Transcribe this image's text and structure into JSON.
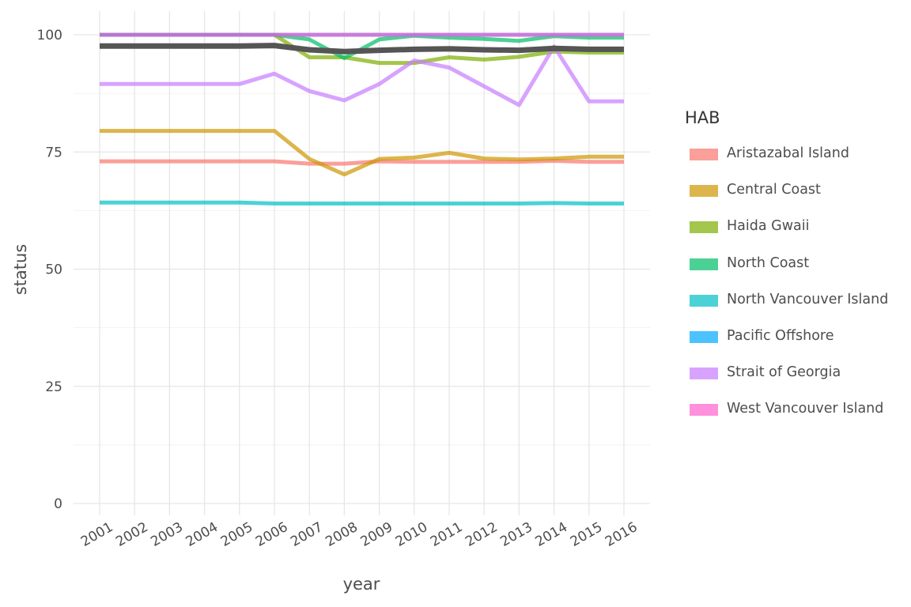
{
  "chart_data": {
    "type": "line",
    "xlabel": "year",
    "ylabel": "status",
    "ylim": [
      0,
      100
    ],
    "yticks": [
      0,
      25,
      50,
      75,
      100
    ],
    "x": [
      2001,
      2002,
      2003,
      2004,
      2005,
      2006,
      2007,
      2008,
      2009,
      2010,
      2011,
      2012,
      2013,
      2014,
      2015,
      2016
    ],
    "x_tick_labels": [
      "2001",
      "2002",
      "2003",
      "2004",
      "2005",
      "2006",
      "2007",
      "2008",
      "2009",
      "2010",
      "2011",
      "2012",
      "2013",
      "2014",
      "2015",
      "2016"
    ],
    "grid": true,
    "legend_title": "HAB",
    "legend_position": "right",
    "series": [
      {
        "name": "Aristazabal Island",
        "color": "#F8766D",
        "values": [
          73.0,
          73.0,
          73.0,
          73.0,
          73.0,
          73.0,
          72.5,
          72.5,
          73.0,
          72.9,
          72.9,
          72.9,
          72.9,
          73.1,
          72.9,
          72.9
        ]
      },
      {
        "name": "Central Coast",
        "color": "#CD9600",
        "values": [
          79.5,
          79.5,
          79.5,
          79.5,
          79.5,
          79.5,
          73.5,
          70.2,
          73.5,
          73.8,
          74.8,
          73.6,
          73.4,
          73.6,
          74.0,
          74.0
        ]
      },
      {
        "name": "Haida Gwaii",
        "color": "#7CAE00",
        "values": [
          100,
          100,
          100,
          100,
          100,
          100,
          95.2,
          95.2,
          94.0,
          94.0,
          95.2,
          94.7,
          95.3,
          96.4,
          96.2,
          96.2
        ]
      },
      {
        "name": "North Coast",
        "color": "#00BE67",
        "values": [
          100,
          100,
          100,
          100,
          100,
          100,
          99.0,
          95.0,
          99.0,
          99.8,
          99.4,
          99.1,
          98.7,
          99.7,
          99.4,
          99.4
        ]
      },
      {
        "name": "North Vancouver Island",
        "color": "#00BFC4",
        "values": [
          64.2,
          64.2,
          64.2,
          64.2,
          64.2,
          64.0,
          64.0,
          64.0,
          64.0,
          64.0,
          64.0,
          64.0,
          64.0,
          64.1,
          64.0,
          64.0
        ]
      },
      {
        "name": "Pacific Offshore",
        "color": "#00A9FF",
        "values": [
          100,
          100,
          100,
          100,
          100,
          100,
          100,
          100,
          100,
          100,
          100,
          100,
          100,
          100,
          100,
          100
        ]
      },
      {
        "name": "Strait of Georgia",
        "color": "#C77CFF",
        "values": [
          89.5,
          89.5,
          89.5,
          89.5,
          89.5,
          91.7,
          88.0,
          86.0,
          89.5,
          94.5,
          93.0,
          89.0,
          85.0,
          97.5,
          85.8,
          85.8
        ]
      },
      {
        "name": "West Vancouver Island",
        "color": "#FF61CC",
        "values": [
          100,
          100,
          100,
          100,
          100,
          100,
          100,
          100,
          100,
          100,
          100,
          100,
          100,
          100,
          100,
          100
        ]
      }
    ],
    "overall_line": {
      "color": "#555555",
      "values": [
        97.6,
        97.6,
        97.6,
        97.6,
        97.6,
        97.7,
        96.8,
        96.4,
        96.7,
        96.9,
        97.0,
        96.8,
        96.7,
        97.1,
        96.9,
        96.9
      ]
    }
  }
}
